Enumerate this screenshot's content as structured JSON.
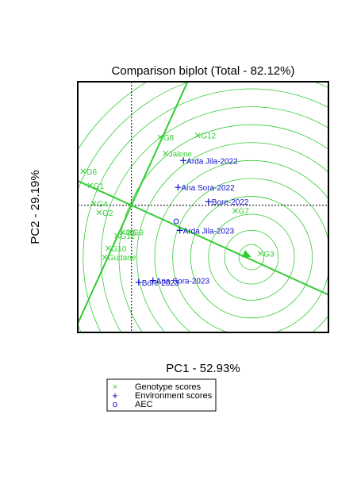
{
  "chart_data": {
    "type": "scatter",
    "title": "Comparison biplot (Total - 82.12%)",
    "xlabel": "PC1 - 52.93%",
    "ylabel": "PC2 - 29.19%",
    "xlim": [
      -1.5,
      5.5
    ],
    "ylim": [
      -3.55,
      3.45
    ],
    "grid": false,
    "legend": {
      "placement": "bottom"
    },
    "colors": {
      "genotype": "#33cc33",
      "environment": "#1111cc",
      "axis": "#000000"
    },
    "genotypes": [
      {
        "label": "G12",
        "x": 1.85,
        "y": 1.95
      },
      {
        "label": "G8",
        "x": 0.8,
        "y": 1.9
      },
      {
        "label": "Jalene",
        "x": 0.95,
        "y": 1.45
      },
      {
        "label": "G6",
        "x": -1.35,
        "y": 0.95
      },
      {
        "label": "G1",
        "x": -1.15,
        "y": 0.55
      },
      {
        "label": "G4",
        "x": -1.05,
        "y": 0.05
      },
      {
        "label": "G2",
        "x": -0.9,
        "y": -0.2
      },
      {
        "label": "G5",
        "x": -0.25,
        "y": -0.75
      },
      {
        "label": "G9",
        "x": -0.05,
        "y": -0.75
      },
      {
        "label": "G11",
        "x": -0.4,
        "y": -0.85
      },
      {
        "label": "G10",
        "x": -0.65,
        "y": -1.2
      },
      {
        "label": "Gudane",
        "x": -0.75,
        "y": -1.45
      },
      {
        "label": "G7",
        "x": 2.9,
        "y": -0.15
      },
      {
        "label": "G3",
        "x": 3.6,
        "y": -1.35
      }
    ],
    "environments": [
      {
        "label": "Arda Jila-2022",
        "x": 1.45,
        "y": 1.25
      },
      {
        "label": "Ana Sora-2022",
        "x": 1.3,
        "y": 0.5
      },
      {
        "label": "Bore-2022",
        "x": 2.15,
        "y": 0.1
      },
      {
        "label": "Arda Jila-2023",
        "x": 1.35,
        "y": -0.7
      },
      {
        "label": "Ana Sora-2023",
        "x": 0.6,
        "y": -2.1
      },
      {
        "label": "Bore-2023",
        "x": 0.2,
        "y": -2.15
      }
    ],
    "aec": {
      "x": 1.25,
      "y": -0.45
    },
    "ideal": {
      "x": 3.35,
      "y": -1.45
    },
    "aec_axis": {
      "slope": -0.4545
    },
    "circle_radii": [
      0.35,
      0.75,
      1.2,
      1.7,
      2.2,
      2.7,
      3.2,
      3.7,
      4.2,
      4.7,
      5.2,
      5.7
    ]
  },
  "legend": {
    "entries": [
      {
        "symbol": "×",
        "label": "Genotype scores"
      },
      {
        "symbol": "+",
        "label": "Environment scores"
      },
      {
        "symbol": "o",
        "label": "AEC"
      }
    ]
  }
}
